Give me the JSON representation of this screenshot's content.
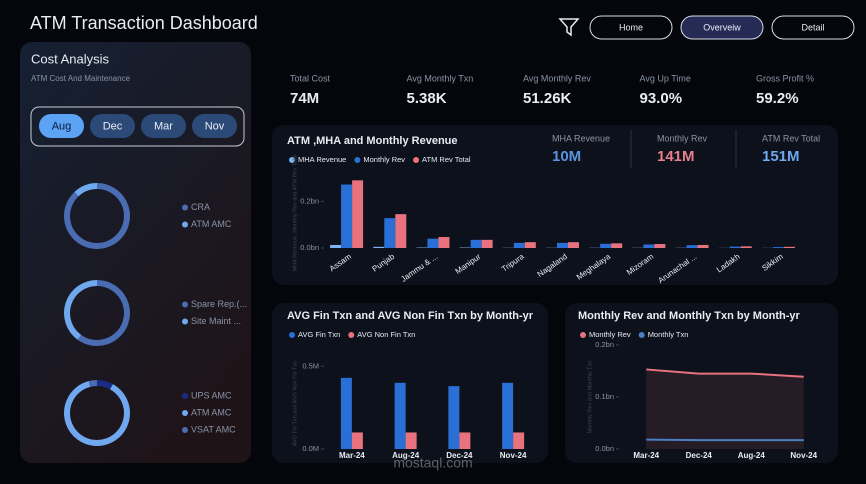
{
  "header": {
    "title": "ATM Transaction Dashboard"
  },
  "nav": [
    "Home",
    "Overveiw",
    "Detail"
  ],
  "nav_selected": 1,
  "cost_panel": {
    "title": "Cost Analysis",
    "subtitle": "ATM Cost And Maintenance",
    "months": [
      "Aug",
      "Dec",
      "Mar",
      "Nov"
    ],
    "selected": 0
  },
  "kpis": [
    {
      "label": "Total Cost",
      "value": "74M"
    },
    {
      "label": "Avg Monthly Txn",
      "value": "5.38K"
    },
    {
      "label": "Avg Monthly Rev",
      "value": "51.26K"
    },
    {
      "label": "Avg Up Time",
      "value": "93.0%"
    },
    {
      "label": "Gross Profit %",
      "value": "59.2%"
    }
  ],
  "revenue_cards": [
    {
      "label": "MHA Revenue",
      "value": "10M",
      "color": "#5b93dc"
    },
    {
      "label": "Monthly Rev",
      "value": "141M",
      "color": "#e8808c"
    },
    {
      "label": "ATM Rev Total",
      "value": "151M",
      "color": "#6fa8ef"
    }
  ],
  "watermark": "mostaql.com",
  "chart_data": [
    {
      "type": "pie",
      "categories": [
        "CRA",
        "ATM AMC"
      ],
      "values": [
        88,
        12
      ],
      "colors": [
        "#4a6cb3",
        "#6fa8ef"
      ]
    },
    {
      "type": "pie",
      "categories": [
        "Spare Rep.(...",
        "Site Maint ..."
      ],
      "values": [
        60,
        40
      ],
      "colors": [
        "#4a6cb3",
        "#6fa8ef"
      ]
    },
    {
      "type": "pie",
      "categories": [
        "UPS AMC",
        "ATM AMC",
        "VSAT AMC"
      ],
      "values": [
        8,
        88,
        4
      ],
      "colors": [
        "#1a2d86",
        "#6fa8ef",
        "#4a6cb3"
      ]
    },
    {
      "type": "bar",
      "title": "ATM ,MHA and Monthly Revenue",
      "y_label": "MHA Revenue, Monthly Rev and ATM Rev Total",
      "categories": [
        "Assam",
        "Punjab",
        "Jammu & ...",
        "Manipur",
        "Tripura",
        "Nagaland",
        "Meghalaya",
        "Mizoram",
        "Arunachal ...",
        "Ladakh",
        "Sikkim"
      ],
      "series": [
        {
          "name": "MHA Revenue",
          "color": "#7fb2f0",
          "values": [
            0.013,
            0.005,
            0.002,
            0.002,
            0.001,
            0.001,
            0.001,
            0.001,
            0.001,
            0.0005,
            0.0005
          ]
        },
        {
          "name": "Monthly Rev",
          "color": "#2a6fd6",
          "values": [
            0.272,
            0.128,
            0.04,
            0.035,
            0.022,
            0.022,
            0.018,
            0.015,
            0.012,
            0.006,
            0.004
          ]
        },
        {
          "name": "ATM Rev Total",
          "color": "#e8737f",
          "values": [
            0.29,
            0.145,
            0.047,
            0.035,
            0.025,
            0.025,
            0.02,
            0.017,
            0.013,
            0.007,
            0.005
          ]
        }
      ],
      "ylim": [
        0,
        0.3
      ],
      "yticks": [
        {
          "value": 0,
          "label": "0.0bn"
        },
        {
          "value": 0.2,
          "label": "0.2bn"
        }
      ]
    },
    {
      "type": "bar",
      "title": "AVG Fin Txn and AVG Non Fin Txn by Month-yr",
      "y_label": "AVG Fin Txn and AVG Non Fin Txn",
      "categories": [
        "Mar-24",
        "Aug-24",
        "Dec-24",
        "Nov-24"
      ],
      "series": [
        {
          "name": "AVG Fin Txn",
          "color": "#2a6fd6",
          "values": [
            0.43,
            0.4,
            0.38,
            0.4
          ]
        },
        {
          "name": "AVG Non Fin Txn",
          "color": "#e8737f",
          "values": [
            0.1,
            0.1,
            0.1,
            0.1
          ]
        }
      ],
      "ylim": [
        0,
        0.55
      ],
      "yticks": [
        {
          "value": 0,
          "label": "0.0M"
        },
        {
          "value": 0.5,
          "label": "0.5M"
        }
      ]
    },
    {
      "type": "line",
      "title": "Monthly Rev and Monthly Txn by Month-yr",
      "y_label": "Monthly Rev and Monthly Txn",
      "categories": [
        "Mar-24",
        "Dec-24",
        "Aug-24",
        "Nov-24"
      ],
      "series": [
        {
          "name": "Monthly Rev",
          "color": "#e8737f",
          "area": true,
          "values": [
            0.153,
            0.145,
            0.145,
            0.139
          ]
        },
        {
          "name": "Monthly Txn",
          "color": "#4a7fc1",
          "values": [
            0.018,
            0.017,
            0.017,
            0.017
          ]
        }
      ],
      "ylim": [
        0,
        0.2
      ],
      "yticks": [
        {
          "value": 0,
          "label": "0.0bn"
        },
        {
          "value": 0.1,
          "label": "0.1bn"
        },
        {
          "value": 0.2,
          "label": "0.2bn"
        }
      ]
    }
  ]
}
